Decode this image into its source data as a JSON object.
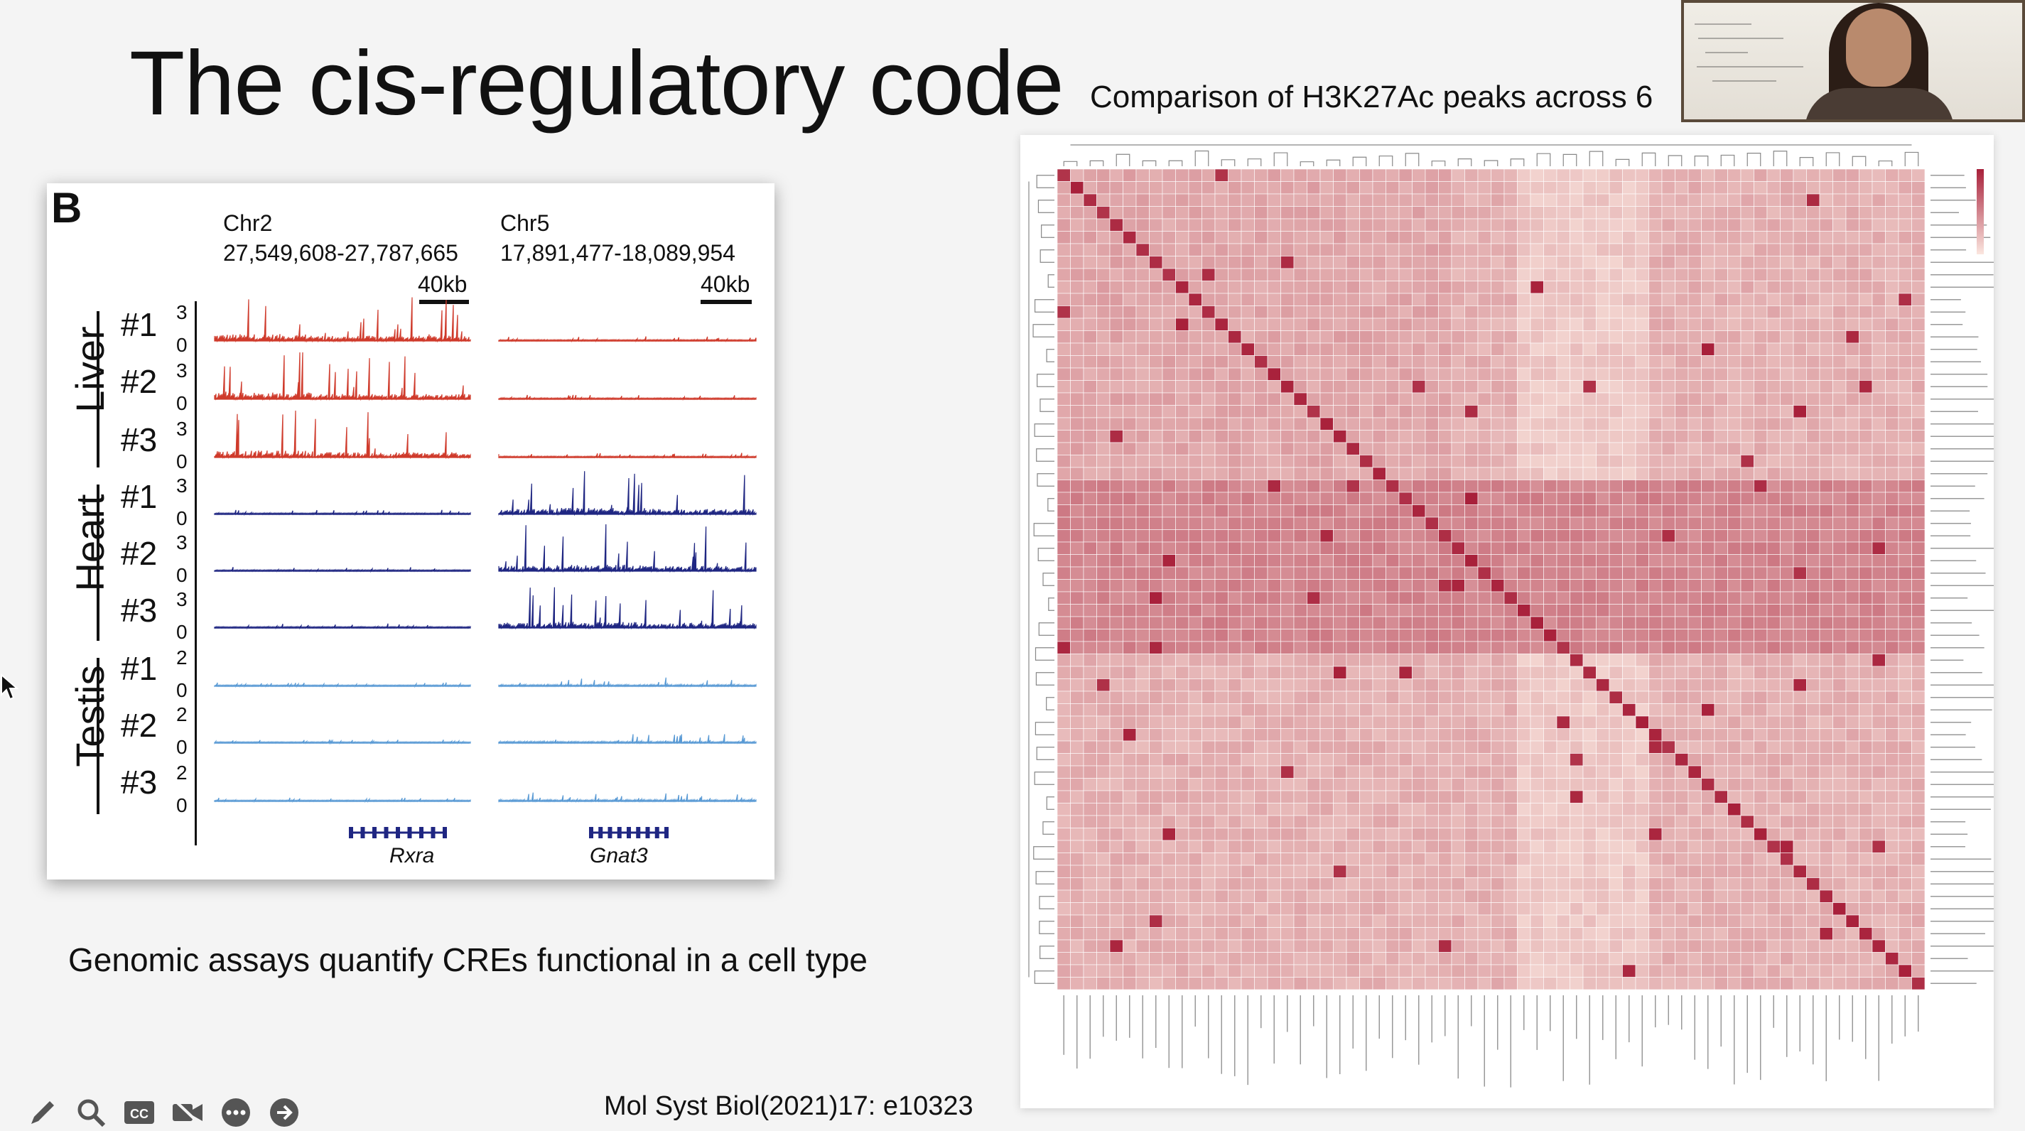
{
  "slide": {
    "title": "The cis-regulatory code",
    "heatmap_title": "Comparison of H3K27Ac peaks across 6",
    "caption": "Genomic assays quantify CREs functional in a cell type",
    "citation": "Mol Syst Biol(2021)17: e10323"
  },
  "figure_b": {
    "panel_letter": "B",
    "regions": [
      {
        "chr": "Chr2",
        "coords": "27,549,608-27,787,665",
        "scale": "40kb",
        "gene": "Rxra"
      },
      {
        "chr": "Chr5",
        "coords": "17,891,477-18,089,954",
        "scale": "40kb",
        "gene": "Gnat3"
      }
    ],
    "tissues": [
      {
        "name": "Liver",
        "color": "#cf3a2b",
        "ymax": "3",
        "ymin": "0",
        "replicates": [
          "#1",
          "#2",
          "#3"
        ]
      },
      {
        "name": "Heart",
        "color": "#1f2682",
        "ymax": "3",
        "ymin": "0",
        "replicates": [
          "#1",
          "#2",
          "#3"
        ]
      },
      {
        "name": "Testis",
        "color": "#5b9bd5",
        "ymax": "2",
        "ymin": "0",
        "replicates": [
          "#1",
          "#2",
          "#3"
        ]
      }
    ]
  },
  "heatmap": {
    "low_color": "#fbe6df",
    "high_color": "#a8203a"
  },
  "toolbar": {
    "icons": [
      "pen-icon",
      "zoom-icon",
      "closed-caption-icon",
      "camera-off-icon",
      "more-icon",
      "next-icon"
    ]
  }
}
